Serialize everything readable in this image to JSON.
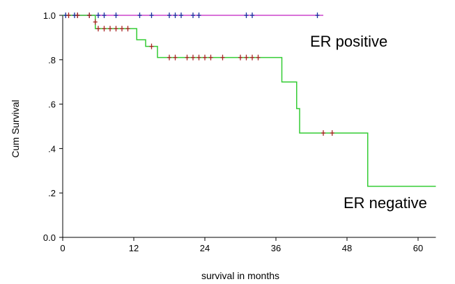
{
  "chart_data": {
    "type": "line",
    "title": "",
    "xlabel": "survival in months",
    "ylabel": "Cum Survival",
    "xlim": [
      0,
      63
    ],
    "ylim": [
      0,
      1.0
    ],
    "x_ticks": [
      0,
      12,
      24,
      36,
      48,
      60
    ],
    "y_ticks": [
      0.0,
      0.2,
      0.4,
      0.6,
      0.8,
      1.0
    ],
    "x_tick_labels": [
      "0",
      "12",
      "24",
      "36",
      "48",
      "60"
    ],
    "y_tick_labels": [
      "0.0",
      ".2",
      ".4",
      ".6",
      ".8",
      "1.0"
    ],
    "grid": false,
    "series": [
      {
        "name": "ER positive",
        "color": "#cc44cc",
        "censor_color": "#1a2fa0",
        "steps": [
          [
            0,
            1.0
          ],
          [
            44,
            1.0
          ]
        ],
        "censored": [
          [
            0.5,
            1.0
          ],
          [
            2,
            1.0
          ],
          [
            2.5,
            1.0
          ],
          [
            4.5,
            1.0
          ],
          [
            6,
            1.0
          ],
          [
            7,
            1.0
          ],
          [
            9,
            1.0
          ],
          [
            13,
            1.0
          ],
          [
            15,
            1.0
          ],
          [
            18,
            1.0
          ],
          [
            19,
            1.0
          ],
          [
            20,
            1.0
          ],
          [
            22,
            1.0
          ],
          [
            23,
            1.0
          ],
          [
            31,
            1.0
          ],
          [
            32,
            1.0
          ],
          [
            43,
            1.0
          ]
        ]
      },
      {
        "name": "ER negative",
        "color": "#33cc33",
        "censor_color": "#aa2222",
        "steps": [
          [
            0,
            1.0
          ],
          [
            5.5,
            1.0
          ],
          [
            5.5,
            0.94
          ],
          [
            12.5,
            0.94
          ],
          [
            12.5,
            0.89
          ],
          [
            14,
            0.89
          ],
          [
            14,
            0.86
          ],
          [
            16,
            0.86
          ],
          [
            16,
            0.81
          ],
          [
            37,
            0.81
          ],
          [
            37,
            0.7
          ],
          [
            39.5,
            0.7
          ],
          [
            39.5,
            0.58
          ],
          [
            40,
            0.58
          ],
          [
            40,
            0.47
          ],
          [
            51.5,
            0.47
          ],
          [
            51.5,
            0.23
          ],
          [
            63,
            0.23
          ]
        ],
        "censored": [
          [
            1,
            1.0
          ],
          [
            2.5,
            1.0
          ],
          [
            4.5,
            1.0
          ],
          [
            5.5,
            0.97
          ],
          [
            6,
            0.94
          ],
          [
            7,
            0.94
          ],
          [
            8,
            0.94
          ],
          [
            9,
            0.94
          ],
          [
            10,
            0.94
          ],
          [
            11,
            0.94
          ],
          [
            15,
            0.86
          ],
          [
            18,
            0.81
          ],
          [
            19,
            0.81
          ],
          [
            21,
            0.81
          ],
          [
            22,
            0.81
          ],
          [
            23,
            0.81
          ],
          [
            24,
            0.81
          ],
          [
            25,
            0.81
          ],
          [
            27,
            0.81
          ],
          [
            30,
            0.81
          ],
          [
            31,
            0.81
          ],
          [
            32,
            0.81
          ],
          [
            33,
            0.81
          ],
          [
            44,
            0.47
          ],
          [
            45.5,
            0.47
          ]
        ]
      }
    ]
  }
}
